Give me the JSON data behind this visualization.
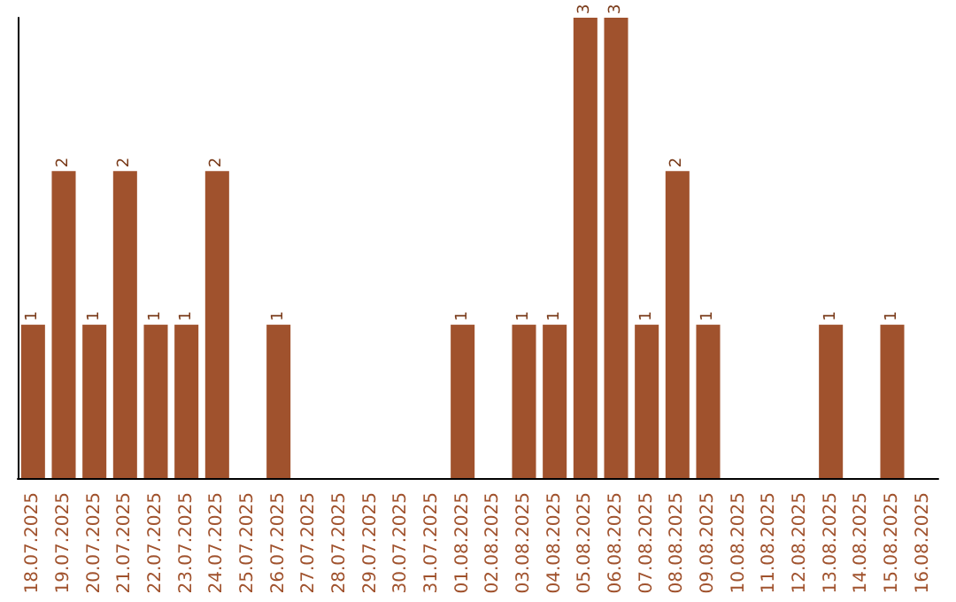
{
  "chart_data": {
    "type": "bar",
    "categories": [
      "18.07.2025",
      "19.07.2025",
      "20.07.2025",
      "21.07.2025",
      "22.07.2025",
      "23.07.2025",
      "24.07.2025",
      "25.07.2025",
      "26.07.2025",
      "27.07.2025",
      "28.07.2025",
      "29.07.2025",
      "30.07.2025",
      "31.07.2025",
      "01.08.2025",
      "02.08.2025",
      "03.08.2025",
      "04.08.2025",
      "05.08.2025",
      "06.08.2025",
      "07.08.2025",
      "08.08.2025",
      "09.08.2025",
      "10.08.2025",
      "11.08.2025",
      "12.08.2025",
      "13.08.2025",
      "14.08.2025",
      "15.08.2025",
      "16.08.2025"
    ],
    "values": [
      1,
      2,
      1,
      2,
      1,
      1,
      2,
      0,
      1,
      0,
      0,
      0,
      0,
      0,
      1,
      0,
      1,
      1,
      3,
      3,
      1,
      2,
      1,
      0,
      0,
      0,
      1,
      0,
      1,
      0
    ],
    "value_labels": [
      "1",
      "2",
      "1",
      "2",
      "1",
      "1",
      "2",
      null,
      "1",
      null,
      null,
      null,
      null,
      null,
      "1",
      null,
      "1",
      "1",
      "3",
      "3",
      "1",
      "2",
      "1",
      null,
      null,
      null,
      "1",
      null,
      "1",
      null
    ],
    "color": "#a0522d",
    "tick_labels": "x",
    "grid": false
  }
}
